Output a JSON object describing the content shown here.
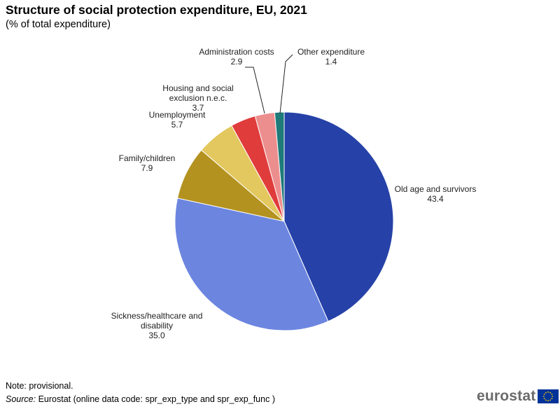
{
  "title": "Structure of social protection expenditure, EU, 2021",
  "subtitle": "(% of total expenditure)",
  "chart_data": {
    "type": "pie",
    "title": "Structure of social protection expenditure, EU, 2021",
    "subtitle": "(% of total expenditure)",
    "unit": "% of total expenditure",
    "slices": [
      {
        "label": [
          "Old age and survivors"
        ],
        "value": 43.4,
        "color": "#2642a8"
      },
      {
        "label": [
          "Sickness/healthcare  and",
          "disability"
        ],
        "value": 35.0,
        "color": "#6c86e0"
      },
      {
        "label": [
          "Family/children"
        ],
        "value": 7.9,
        "color": "#b3921f"
      },
      {
        "label": [
          "Unemployment"
        ],
        "value": 5.7,
        "color": "#e3c85f"
      },
      {
        "label": [
          "Housing and social",
          "exclusion n.e.c."
        ],
        "value": 3.7,
        "color": "#e03c3c"
      },
      {
        "label": [
          "Administration costs"
        ],
        "value": 2.9,
        "color": "#ed8e8e"
      },
      {
        "label": [
          "Other expenditure"
        ],
        "value": 1.4,
        "color": "#1f7a7a"
      }
    ]
  },
  "note": "Note: provisional.",
  "source_label": "Source:",
  "source_text": " Eurostat (online data code: spr_exp_type and spr_exp_func   )",
  "logo_text": "eurostat",
  "logo_colors": {
    "flag": "#003399",
    "stars": "#ffcc00"
  }
}
